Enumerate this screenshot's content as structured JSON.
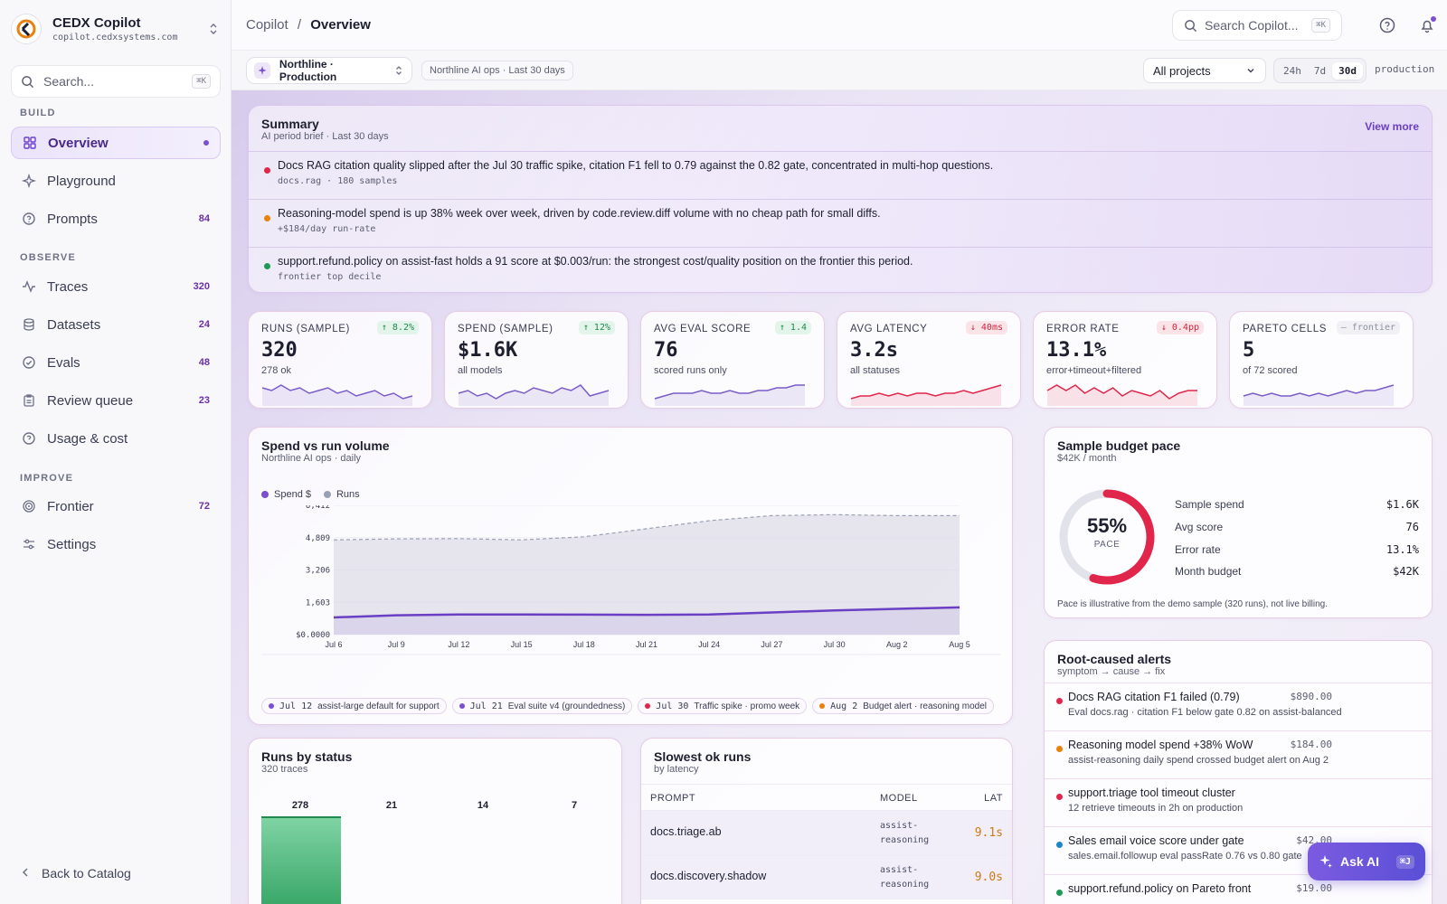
{
  "app": {
    "name": "CEDX Copilot",
    "url": "copilot.cedxsystems.com"
  },
  "sidebar": {
    "search_placeholder": "Search...",
    "search_shortcut": "⌘K",
    "sections": {
      "build": "BUILD",
      "observe": "OBSERVE",
      "improve": "IMPROVE"
    },
    "items": [
      {
        "label": "Overview",
        "count": "",
        "icon": "grid-icon"
      },
      {
        "label": "Playground",
        "count": "",
        "icon": "sparkle-icon"
      },
      {
        "label": "Prompts",
        "count": "84",
        "icon": "help-circle-icon"
      },
      {
        "label": "Traces",
        "count": "320",
        "icon": "activity-icon"
      },
      {
        "label": "Datasets",
        "count": "24",
        "icon": "database-icon"
      },
      {
        "label": "Evals",
        "count": "48",
        "icon": "check-circle-icon"
      },
      {
        "label": "Review queue",
        "count": "23",
        "icon": "clipboard-icon"
      },
      {
        "label": "Usage & cost",
        "count": "",
        "icon": "coin-icon"
      },
      {
        "label": "Frontier",
        "count": "72",
        "icon": "target-icon"
      },
      {
        "label": "Settings",
        "count": "",
        "icon": "sliders-icon"
      }
    ],
    "back_label": "Back to Catalog"
  },
  "topbar": {
    "breadcrumb_root": "Copilot",
    "breadcrumb_sep": "/",
    "breadcrumb_current": "Overview",
    "search_placeholder": "Search Copilot...",
    "search_shortcut": "⌘K"
  },
  "toolbar": {
    "project": "Northline · Production",
    "context": "Northline AI ops · Last 30 days",
    "project_filter": "All projects",
    "ranges": [
      "24h",
      "7d",
      "30d"
    ],
    "range_selected": "30d",
    "environment": "production"
  },
  "summary": {
    "title": "Summary",
    "subtitle": "AI period brief · Last 30 days",
    "view_more": "View more",
    "items": [
      {
        "text": "Docs RAG citation quality slipped after the Jul 30 traffic spike, citation F1 fell to 0.79 against the 0.82 gate, concentrated in multi-hop questions.",
        "meta": "docs.rag · 180 samples",
        "color": "#e0264a"
      },
      {
        "text": "Reasoning-model spend is up 38% week over week, driven by code.review.diff volume with no cheap path for small diffs.",
        "meta": "+$184/day run-rate",
        "color": "#e8820c"
      },
      {
        "text": "support.refund.policy on assist-fast holds a 91 score at $0.003/run: the strongest cost/quality position on the frontier this period.",
        "meta": "frontier top decile",
        "color": "#1f9a56"
      }
    ]
  },
  "metrics": [
    {
      "label": "RUNS (SAMPLE)",
      "value": "320",
      "sub": "278 ok",
      "delta": "↑ 8.2%",
      "trend": "up",
      "color": "#7a5cc8",
      "spark": [
        6,
        5,
        7,
        5,
        6,
        4,
        5,
        6,
        4,
        5,
        3,
        4,
        5,
        3,
        4,
        2,
        3
      ]
    },
    {
      "label": "SPEND (SAMPLE)",
      "value": "$1.6K",
      "sub": "all models",
      "delta": "↑ 12%",
      "trend": "up",
      "color": "#7a5cc8",
      "spark": [
        4,
        5,
        3,
        4,
        2,
        4,
        5,
        4,
        6,
        5,
        4,
        6,
        5,
        7,
        3,
        4,
        5
      ]
    },
    {
      "label": "AVG EVAL SCORE",
      "value": "76",
      "sub": "scored runs only",
      "delta": "↑ 1.4",
      "trend": "up",
      "color": "#7a5cc8",
      "spark": [
        2,
        3,
        4,
        4,
        4,
        5,
        4,
        4,
        5,
        4,
        4,
        5,
        5,
        6,
        6,
        7,
        7
      ]
    },
    {
      "label": "AVG LATENCY",
      "value": "3.2s",
      "sub": "all statuses",
      "delta": "↓ 40ms",
      "trend": "down",
      "color": "#e0264a",
      "spark": [
        2,
        3,
        3,
        4,
        3,
        4,
        3,
        4,
        4,
        3,
        4,
        4,
        5,
        4,
        5,
        6,
        7
      ]
    },
    {
      "label": "ERROR RATE",
      "value": "13.1%",
      "sub": "error+timeout+filtered",
      "delta": "↓ 0.4pp",
      "trend": "down",
      "color": "#e0264a",
      "spark": [
        5,
        7,
        5,
        7,
        4,
        6,
        4,
        6,
        3,
        5,
        4,
        3,
        5,
        2,
        4,
        5,
        5
      ]
    },
    {
      "label": "PARETO CELLS",
      "value": "5",
      "sub": "of 72 scored",
      "delta": "— frontier",
      "trend": "neutral",
      "color": "#7a5cc8",
      "spark": [
        3,
        4,
        3,
        4,
        3,
        3,
        4,
        3,
        4,
        3,
        4,
        5,
        4,
        5,
        5,
        6,
        7
      ]
    }
  ],
  "spend_chart": {
    "title": "Spend vs run volume",
    "subtitle": "Northline AI ops · daily",
    "legend": [
      {
        "name": "Spend $",
        "color": "#7a4fd0"
      },
      {
        "name": "Runs",
        "color": "#9aa0b4"
      }
    ],
    "events": [
      {
        "date": "Jul 12",
        "label": "assist-large default for support",
        "color": "#7a4fd0"
      },
      {
        "date": "Jul 21",
        "label": "Eval suite v4 (groundedness)",
        "color": "#7a4fd0"
      },
      {
        "date": "Jul 30",
        "label": "Traffic spike · promo week",
        "color": "#e0264a"
      },
      {
        "date": "Aug 2",
        "label": "Budget alert · reasoning model",
        "color": "#e8820c"
      }
    ]
  },
  "chart_data": {
    "type": "area",
    "x": [
      "Jul 6",
      "Jul 9",
      "Jul 12",
      "Jul 15",
      "Jul 18",
      "Jul 21",
      "Jul 24",
      "Jul 27",
      "Jul 30",
      "Aug 2",
      "Aug 5"
    ],
    "y_ticks": [
      "$0.0000",
      "1,603",
      "3,206",
      "4,809",
      "6,412"
    ],
    "ylim": [
      0,
      6412
    ],
    "series": [
      {
        "name": "Runs",
        "values": [
          4700,
          4750,
          4760,
          4700,
          4850,
          5250,
          5650,
          5900,
          5950,
          5900,
          5900
        ]
      },
      {
        "name": "Spend $",
        "values": [
          850,
          960,
          1000,
          1000,
          990,
          980,
          1000,
          1100,
          1200,
          1280,
          1350
        ]
      }
    ]
  },
  "budget": {
    "title": "Sample budget pace",
    "subtitle": "$42K / month",
    "pace_value": "55%",
    "pace_label": "PACE",
    "pace_fraction": 0.55,
    "rows": [
      {
        "label": "Sample spend",
        "value": "$1.6K"
      },
      {
        "label": "Avg score",
        "value": "76"
      },
      {
        "label": "Error rate",
        "value": "13.1%"
      },
      {
        "label": "Month budget",
        "value": "$42K"
      }
    ],
    "note": "Pace is illustrative from the demo sample (320 runs), not live billing."
  },
  "alerts": {
    "title": "Root-caused alerts",
    "subtitle": "symptom → cause → fix",
    "items": [
      {
        "title": "Docs RAG citation F1 failed (0.79)",
        "detail": "Eval docs.rag · citation F1 below gate 0.82 on assist-balanced",
        "amount": "$890.00",
        "color": "#e0264a"
      },
      {
        "title": "Reasoning model spend +38% WoW",
        "detail": "assist-reasoning daily spend crossed budget alert on Aug 2",
        "amount": "$184.00",
        "color": "#e8820c"
      },
      {
        "title": "support.triage tool timeout cluster",
        "detail": "12 retrieve timeouts in 2h on production",
        "amount": "",
        "color": "#e0264a"
      },
      {
        "title": "Sales email voice score under gate",
        "detail": "sales.email.followup eval passRate 0.76 vs 0.80 gate",
        "amount": "$42.00",
        "color": "#1a86c8"
      },
      {
        "title": "support.refund.policy on Pareto front",
        "detail": "",
        "amount": "$19.00",
        "color": "#1f9a56"
      }
    ]
  },
  "status": {
    "title": "Runs by status",
    "subtitle": "320 traces",
    "counts": [
      "278",
      "21",
      "14",
      "7"
    ]
  },
  "slowest": {
    "title": "Slowest ok runs",
    "subtitle": "by latency",
    "headers": {
      "prompt": "PROMPT",
      "model": "MODEL",
      "lat": "LAT"
    },
    "rows": [
      {
        "prompt": "docs.triage.ab",
        "model": "assist-reasoning",
        "lat": "9.1s"
      },
      {
        "prompt": "docs.discovery.shadow",
        "model": "assist-reasoning",
        "lat": "9.0s"
      }
    ]
  },
  "ask_ai": {
    "label": "Ask AI",
    "shortcut": "⌘J"
  }
}
